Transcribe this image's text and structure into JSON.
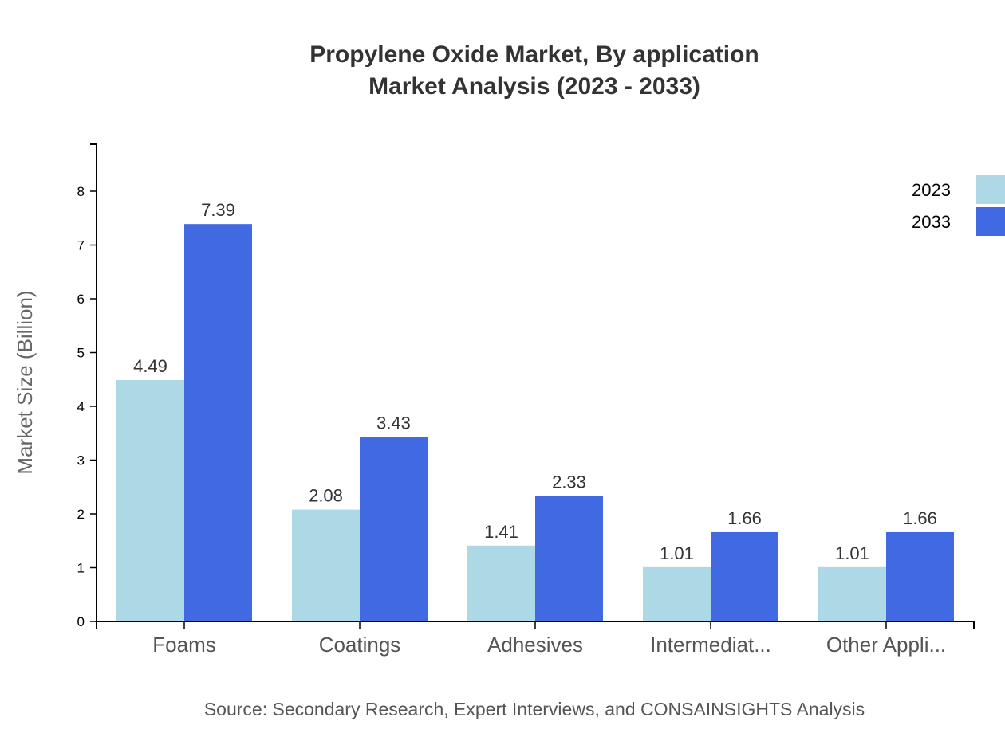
{
  "chart_data": {
    "type": "bar",
    "title": "Propylene Oxide Market, By application",
    "subtitle": "Market Analysis (2023 - 2033)",
    "xlabel": "",
    "ylabel": "Market Size (Billion)",
    "ylim": [
      0,
      8.8
    ],
    "yticks": [
      0,
      1,
      2,
      3,
      4,
      5,
      6,
      7,
      8
    ],
    "grid": false,
    "legend_position": "top-right",
    "categories": [
      "Foams",
      "Coatings",
      "Adhesives",
      "Intermediat...",
      "Other Appli..."
    ],
    "series": [
      {
        "name": "2023",
        "color": "#add8e6",
        "values": [
          4.49,
          2.08,
          1.41,
          1.01,
          1.01
        ]
      },
      {
        "name": "2033",
        "color": "#4169e1",
        "values": [
          7.39,
          3.43,
          2.33,
          1.66,
          1.66
        ]
      }
    ],
    "source": "Source: Secondary Research, Expert Interviews, and CONSAINSIGHTS Analysis"
  }
}
